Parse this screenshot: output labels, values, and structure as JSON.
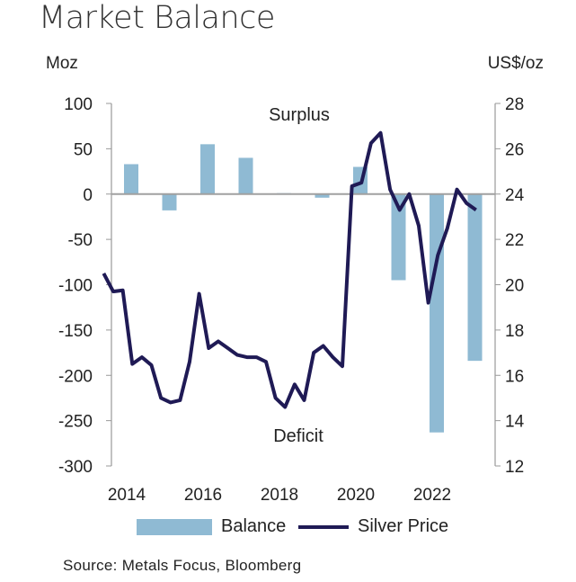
{
  "chart_data": {
    "type": "bar+line",
    "title": "Market Balance",
    "ylabel_left": "Moz",
    "ylabel_right": "US$/oz",
    "ylim_left": [
      -300,
      100
    ],
    "ylim_right": [
      12,
      28
    ],
    "yticks_left": [
      100,
      50,
      0,
      -50,
      -100,
      -150,
      -200,
      -250,
      -300
    ],
    "yticks_right": [
      28,
      26,
      24,
      22,
      20,
      18,
      16,
      14,
      12
    ],
    "xticks": [
      "2014",
      "2016",
      "2018",
      "2020",
      "2022"
    ],
    "annotations": {
      "surplus": "Surplus",
      "deficit": "Deficit"
    },
    "grid": false,
    "legend_position": "bottom",
    "series": [
      {
        "name": "Balance",
        "type": "bar",
        "axis": "left",
        "color": "#8fbad3",
        "x": [
          2014,
          2015,
          2016,
          2017,
          2018,
          2019,
          2020,
          2021,
          2022,
          2023
        ],
        "values": [
          33,
          -18,
          55,
          40,
          1,
          -4,
          30,
          -95,
          -263,
          -184
        ]
      },
      {
        "name": "Silver Price",
        "type": "line",
        "axis": "right",
        "color": "#1f1a55",
        "x": [
          2013.75,
          2014,
          2014.25,
          2014.5,
          2014.75,
          2015,
          2015.25,
          2015.5,
          2015.75,
          2016,
          2016.25,
          2016.5,
          2016.75,
          2017,
          2017.25,
          2017.5,
          2017.75,
          2018,
          2018.25,
          2018.5,
          2018.75,
          2019,
          2019.25,
          2019.5,
          2019.75,
          2020,
          2020.25,
          2020.5,
          2020.75,
          2021,
          2021.25,
          2021.5,
          2021.75,
          2022,
          2022.25,
          2022.5,
          2022.75,
          2023,
          2023.25,
          2023.5
        ],
        "values": [
          20.5,
          19.7,
          19.75,
          16.5,
          16.8,
          16.45,
          15.0,
          14.8,
          14.9,
          16.6,
          19.6,
          17.2,
          17.5,
          17.2,
          16.9,
          16.8,
          16.8,
          16.6,
          15.0,
          14.6,
          15.6,
          14.9,
          17.0,
          17.3,
          16.8,
          16.4,
          24.35,
          24.5,
          26.25,
          26.7,
          24.2,
          23.3,
          24.0,
          22.6,
          19.2,
          21.3,
          22.5,
          24.2,
          23.6,
          23.3
        ]
      }
    ]
  },
  "source": "Source: Metals Focus, Bloomberg"
}
